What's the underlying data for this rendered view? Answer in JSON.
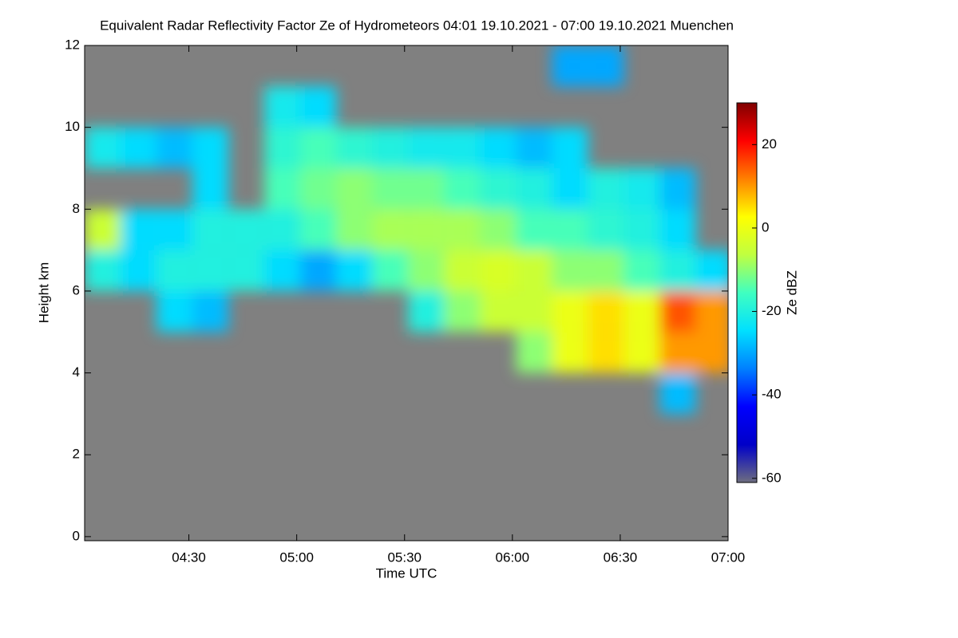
{
  "chart_data": {
    "type": "heatmap",
    "title": "Equivalent Radar Reflectivity Factor Ze of Hydrometeors   04:01 19.10.2021 - 07:00 19.10.2021 Muenchen",
    "xlabel": "Time UTC",
    "ylabel": "Height km",
    "colorbar_label": "Ze dBZ",
    "xlim": [
      241,
      420
    ],
    "xticks": [
      {
        "value": 270,
        "label": "04:30"
      },
      {
        "value": 300,
        "label": "05:00"
      },
      {
        "value": 330,
        "label": "05:30"
      },
      {
        "value": 360,
        "label": "06:00"
      },
      {
        "value": 390,
        "label": "06:30"
      },
      {
        "value": 420,
        "label": "07:00"
      }
    ],
    "ylim": [
      -0.1,
      12
    ],
    "yticks": [
      0,
      2,
      4,
      6,
      8,
      10,
      12
    ],
    "zlim": [
      -61,
      30
    ],
    "zticks": [
      20,
      0,
      -20,
      -40,
      -60
    ],
    "background": "#808080",
    "colormap": [
      "#6e6e80",
      "#0000c8",
      "#0000ff",
      "#0080ff",
      "#00e0ff",
      "#40ffc0",
      "#c0ff40",
      "#ffff00",
      "#ff8000",
      "#ff0000",
      "#800000"
    ],
    "x": [
      246,
      256,
      266,
      276,
      286,
      296,
      306,
      316,
      326,
      336,
      346,
      356,
      366,
      376,
      386,
      396,
      406,
      416
    ],
    "y": [
      0.5,
      1.5,
      2.5,
      3.5,
      4.5,
      5.5,
      6.5,
      7.5,
      8.5,
      9.5,
      10.5,
      11.5
    ],
    "z": [
      [
        null,
        null,
        null,
        null,
        null,
        null,
        null,
        null,
        null,
        null,
        null,
        null,
        null,
        null,
        null,
        null,
        null,
        null
      ],
      [
        null,
        null,
        null,
        null,
        null,
        null,
        null,
        null,
        null,
        null,
        null,
        null,
        null,
        null,
        null,
        null,
        null,
        null
      ],
      [
        null,
        null,
        null,
        null,
        null,
        null,
        null,
        null,
        null,
        null,
        null,
        null,
        null,
        null,
        null,
        null,
        null,
        null
      ],
      [
        null,
        null,
        null,
        null,
        null,
        null,
        null,
        null,
        null,
        null,
        null,
        null,
        null,
        null,
        null,
        null,
        -28,
        null
      ],
      [
        null,
        null,
        null,
        null,
        null,
        null,
        null,
        null,
        null,
        null,
        null,
        null,
        -10,
        0,
        5,
        0,
        10,
        10
      ],
      [
        null,
        null,
        -25,
        -28,
        null,
        null,
        null,
        null,
        null,
        -20,
        -10,
        -5,
        -5,
        0,
        5,
        0,
        15,
        10
      ],
      [
        -20,
        -25,
        -20,
        -20,
        -20,
        -25,
        -30,
        -25,
        -15,
        -10,
        -5,
        -3,
        -5,
        -10,
        -10,
        -15,
        -20,
        -25
      ],
      [
        -5,
        -25,
        -25,
        -20,
        -20,
        -20,
        -15,
        -10,
        -8,
        -8,
        -8,
        -10,
        -15,
        -15,
        -18,
        -20,
        -25,
        null
      ],
      [
        null,
        null,
        null,
        -25,
        null,
        -15,
        -12,
        -10,
        -12,
        -12,
        -15,
        -18,
        -20,
        -25,
        -20,
        -22,
        -28,
        null
      ],
      [
        -22,
        -25,
        -28,
        -25,
        null,
        -18,
        -15,
        -18,
        -20,
        -22,
        -22,
        -25,
        -28,
        -25,
        null,
        null,
        null,
        null
      ],
      [
        null,
        null,
        null,
        null,
        null,
        -22,
        -25,
        null,
        null,
        null,
        null,
        null,
        null,
        null,
        null,
        null,
        null,
        null
      ],
      [
        null,
        null,
        null,
        null,
        null,
        null,
        null,
        null,
        null,
        null,
        null,
        null,
        null,
        -30,
        -30,
        null,
        null,
        null
      ]
    ]
  }
}
